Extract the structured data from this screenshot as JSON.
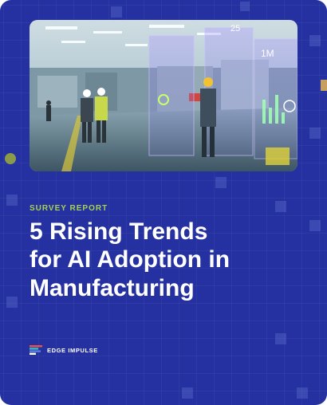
{
  "cover": {
    "eyebrow": "SURVEY REPORT",
    "title_lines": [
      "5 Rising Trends",
      "for AI Adoption in",
      "Manufacturing"
    ],
    "brand": "EDGE IMPULSE",
    "hud_labels": [
      "25",
      "1M"
    ]
  },
  "colors": {
    "background": "#2531a0",
    "accent_green": "#a8d24e",
    "title": "#ffffff",
    "logo_red": "#e5534b",
    "logo_teal": "#3fb8c4",
    "logo_blue": "#5b7fe0"
  },
  "icons": [
    "edge-impulse-logo-icon"
  ]
}
